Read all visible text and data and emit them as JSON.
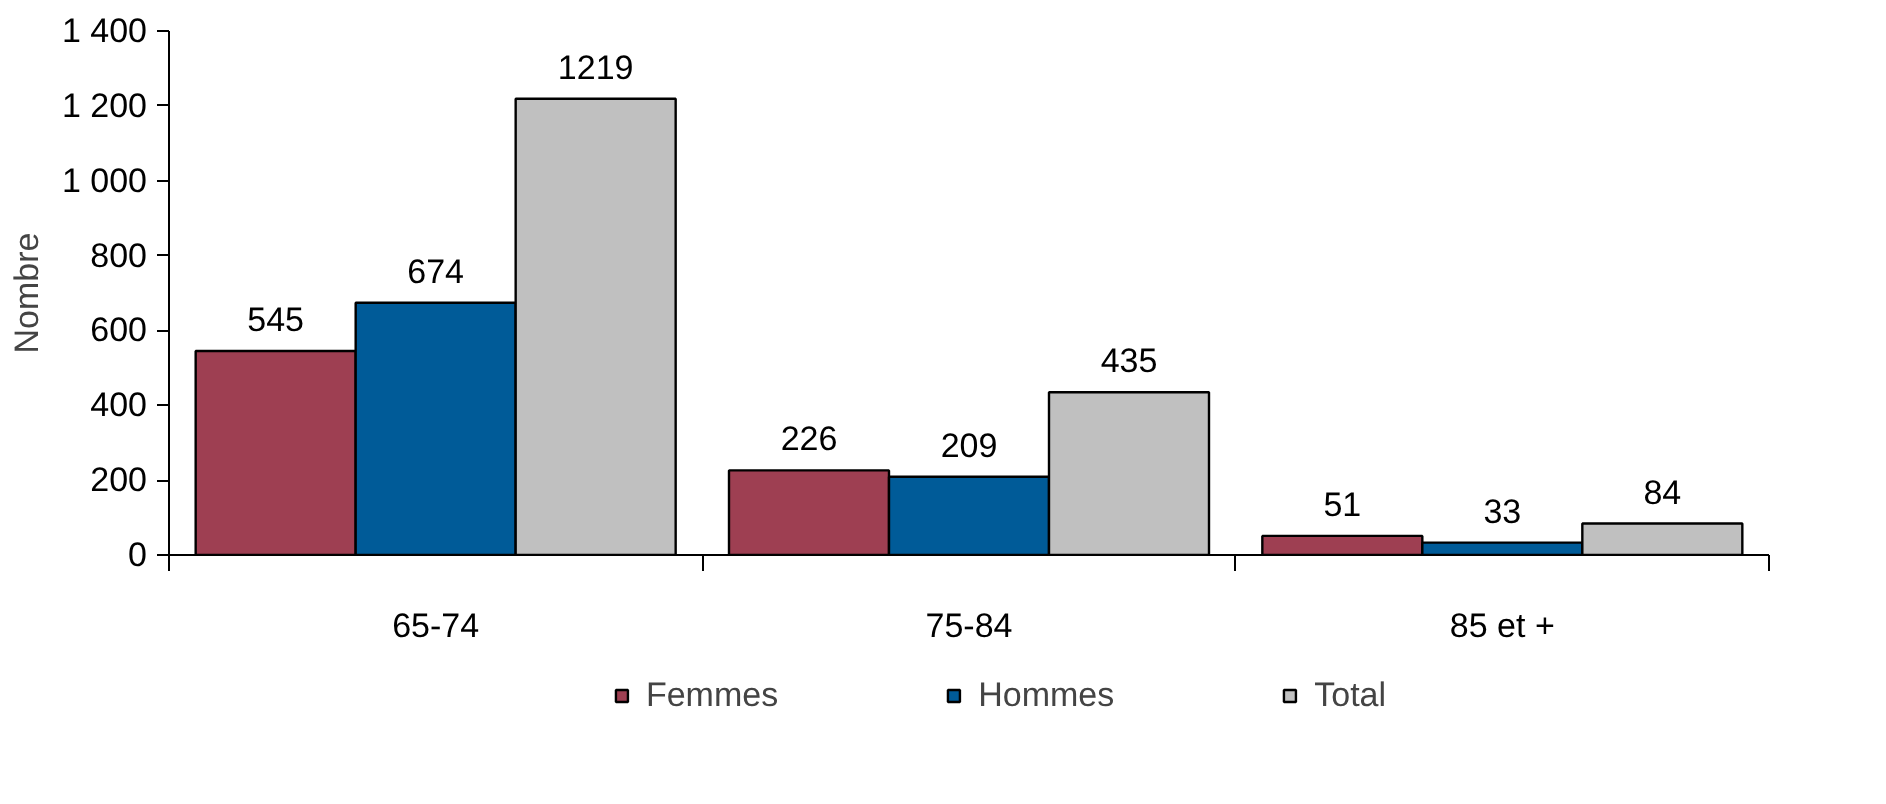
{
  "chart_data": {
    "type": "bar",
    "ylabel": "Nombre",
    "categories": [
      "65-74",
      "75-84",
      "85 et +"
    ],
    "series": [
      {
        "name": "Femmes",
        "color": "#9e3f52",
        "values": [
          545,
          226,
          51
        ]
      },
      {
        "name": "Hommes",
        "color": "#005b98",
        "values": [
          674,
          209,
          33
        ]
      },
      {
        "name": "Total",
        "color": "#c0c0c0",
        "values": [
          1219,
          435,
          84
        ]
      }
    ],
    "ylim": [
      0,
      1400
    ],
    "yticks": [
      0,
      200,
      400,
      600,
      800,
      {
        "value": 1000,
        "label": "1 000"
      },
      {
        "value": 1200,
        "label": "1 200"
      },
      {
        "value": 1400,
        "label": "1 400"
      }
    ],
    "data_labels": true,
    "grid": false,
    "legend": "bottom"
  }
}
